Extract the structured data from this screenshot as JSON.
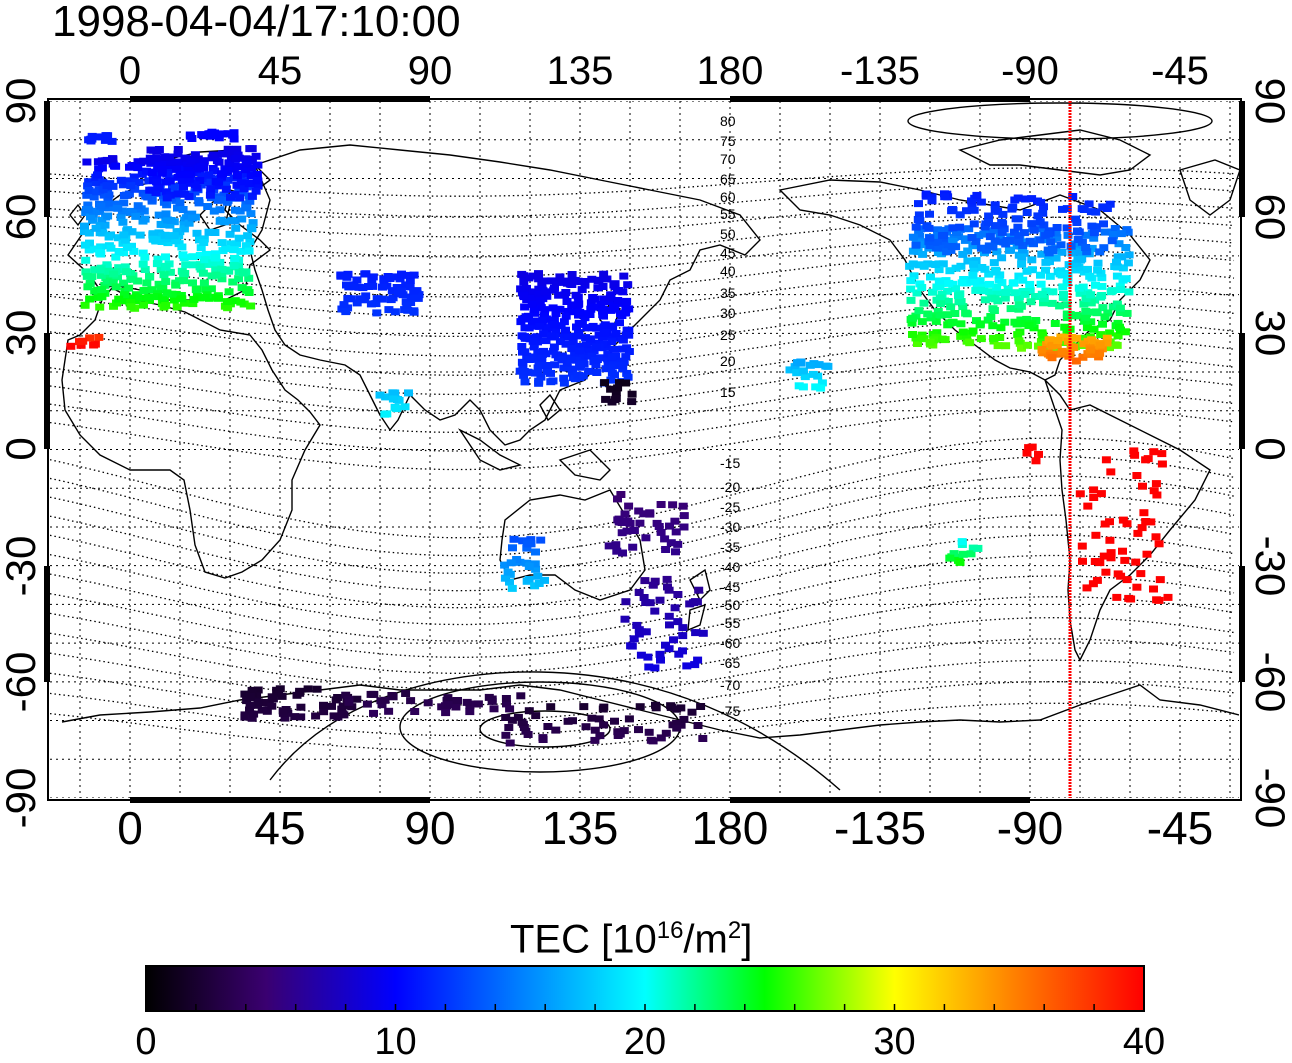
{
  "title": "1998-04-04/17:10:00",
  "map": {
    "top_lon_labels": [
      "0",
      "45",
      "90",
      "135",
      "180",
      "-135",
      "-90",
      "-45"
    ],
    "bottom_lon_labels": [
      "0",
      "45",
      "90",
      "135",
      "180",
      "-135",
      "-90",
      "-45"
    ],
    "lat_labels": [
      "90",
      "60",
      "30",
      "0",
      "-30",
      "-60",
      "-90"
    ],
    "contour_labels_north": [
      "80",
      "75",
      "70",
      "65",
      "60",
      "55",
      "50",
      "45",
      "40",
      "35",
      "30",
      "25",
      "20",
      "15"
    ],
    "contour_labels_south": [
      "-15",
      "-20",
      "-25",
      "-30",
      "-35",
      "-40",
      "-45",
      "-50",
      "-55",
      "-60",
      "-65",
      "-70",
      "-75"
    ],
    "marker_line_color": "#ff0000"
  },
  "colorbar": {
    "label_main": "TEC  [10",
    "label_exp1": "16",
    "label_mid": "/m",
    "label_exp2": "2",
    "label_end": "]",
    "ticks": [
      "0",
      "10",
      "20",
      "30",
      "40"
    ],
    "colors": [
      "#000000",
      "#3a0070",
      "#0000ff",
      "#00ffff",
      "#00ff00",
      "#ffff00",
      "#ff8000",
      "#ff0000"
    ]
  }
}
